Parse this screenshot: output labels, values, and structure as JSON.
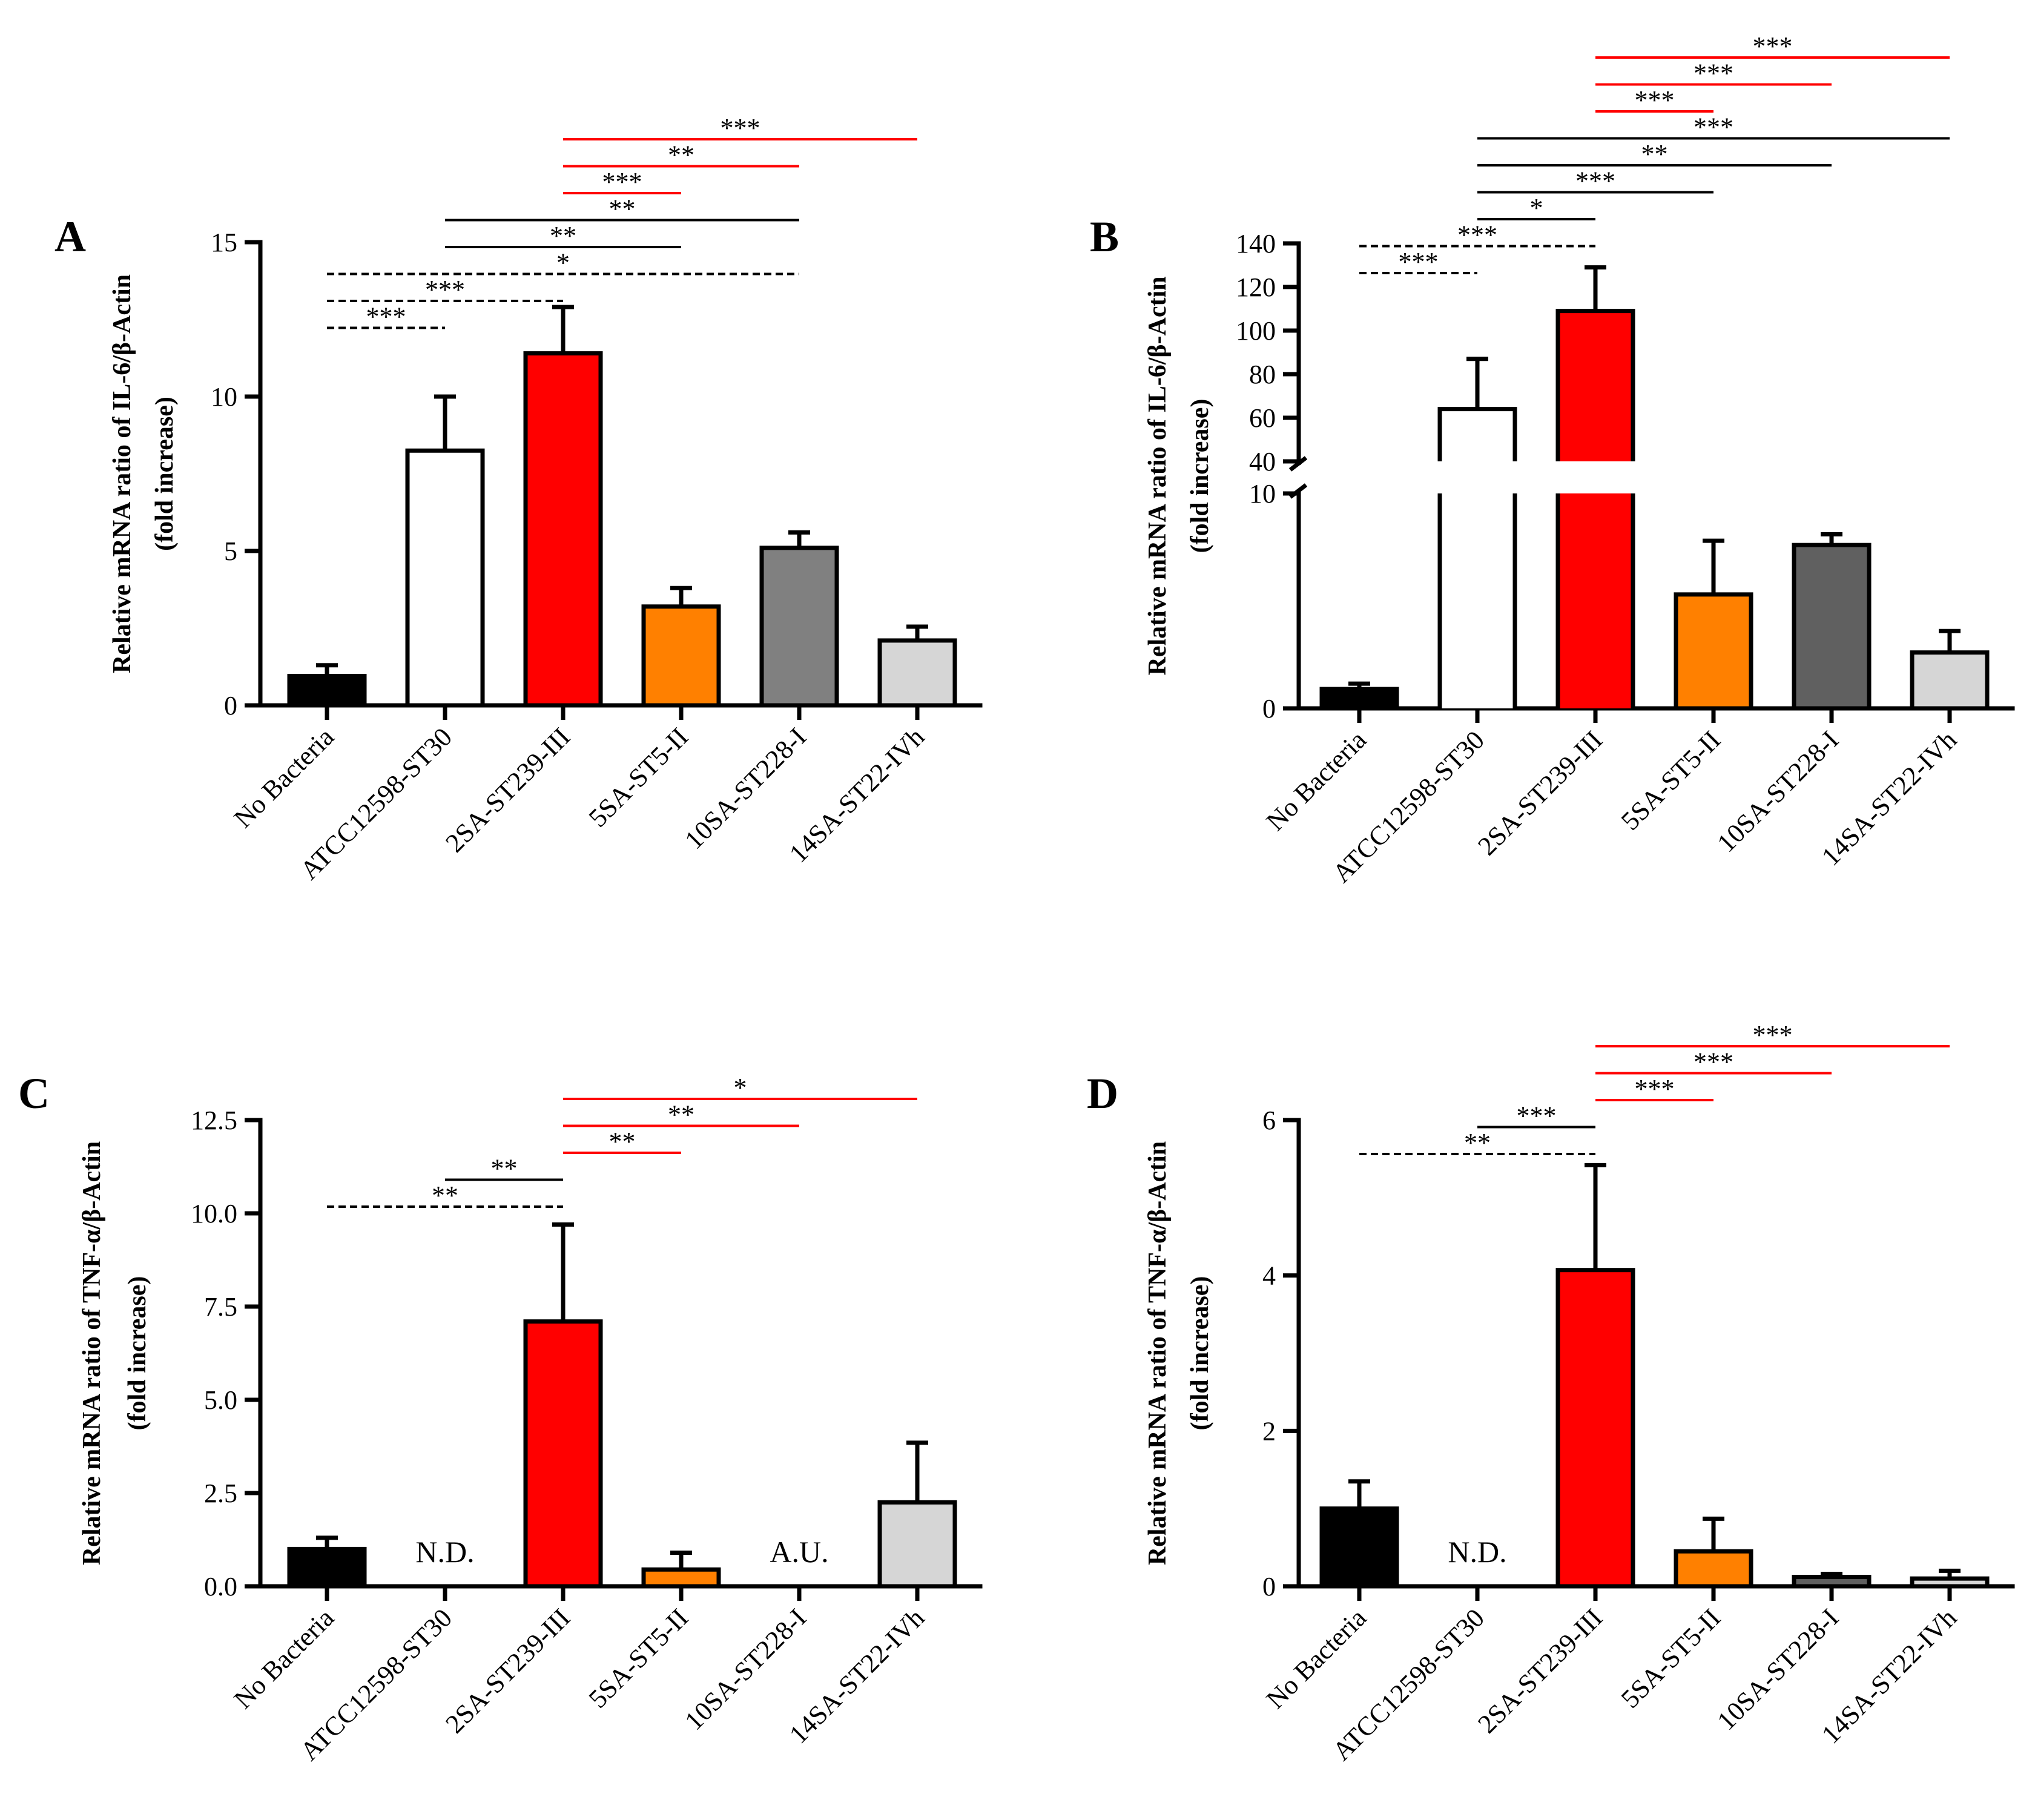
{
  "chart_data": [
    {
      "panel": "A",
      "type": "bar",
      "ylabel_line1": "Relative mRNA ratio of IL-6/β-Actin",
      "ylabel_line2": "(fold increase)",
      "ylim": [
        0,
        15
      ],
      "yticks": [
        "0",
        "5",
        "10",
        "15"
      ],
      "categories": [
        "No Bacteria",
        "ATCC12598-ST30",
        "2SA-ST239-III",
        "5SA-ST5-II",
        "10SA-ST228-I",
        "14SA-ST22-IVh"
      ],
      "values": [
        0.95,
        8.25,
        11.4,
        3.2,
        5.1,
        2.1
      ],
      "errors": [
        0.35,
        1.75,
        1.5,
        0.6,
        0.5,
        0.45
      ],
      "colors": [
        "#000000",
        "#ffffff",
        "#ff0000",
        "#ff8000",
        "#808080",
        "#d6d6d6"
      ],
      "notes": [],
      "brackets": [
        {
          "from": 0,
          "to": 1,
          "label": "***",
          "style": "dashed",
          "color": "#000000"
        },
        {
          "from": 0,
          "to": 2,
          "label": "***",
          "style": "dashed",
          "color": "#000000"
        },
        {
          "from": 0,
          "to": 4,
          "label": "*",
          "style": "dashed",
          "color": "#000000"
        },
        {
          "from": 1,
          "to": 3,
          "label": "**",
          "style": "solid",
          "color": "#000000"
        },
        {
          "from": 1,
          "to": 4,
          "label": "**",
          "style": "solid",
          "color": "#000000"
        },
        {
          "from": 2,
          "to": 3,
          "label": "***",
          "style": "solid",
          "color": "#ff0000"
        },
        {
          "from": 2,
          "to": 4,
          "label": "**",
          "style": "solid",
          "color": "#ff0000"
        },
        {
          "from": 2,
          "to": 5,
          "label": "***",
          "style": "solid",
          "color": "#ff0000"
        }
      ]
    },
    {
      "panel": "B",
      "type": "bar",
      "ylabel_line1": "Relative mRNA ratio of IL-6/β-Actin",
      "ylabel_line2": "(fold increase)",
      "axis_break": {
        "lower_range": [
          0,
          10
        ],
        "upper_range": [
          40,
          140
        ]
      },
      "yticks_lower": [
        "0",
        "10"
      ],
      "yticks_upper": [
        "40",
        "60",
        "80",
        "100",
        "120",
        "140"
      ],
      "categories": [
        "No Bacteria",
        "ATCC12598-ST30",
        "2SA-ST239-III",
        "5SA-ST5-II",
        "10SA-ST228-I",
        "14SA-ST22-IVh"
      ],
      "values": [
        0.9,
        64,
        109,
        5.3,
        7.6,
        2.6
      ],
      "errors": [
        0.25,
        23,
        20,
        2.5,
        0.5,
        1.0
      ],
      "colors": [
        "#000000",
        "#ffffff",
        "#ff0000",
        "#ff8000",
        "#606060",
        "#d6d6d6"
      ],
      "notes": [],
      "brackets": [
        {
          "from": 0,
          "to": 1,
          "label": "***",
          "style": "dashed",
          "color": "#000000"
        },
        {
          "from": 0,
          "to": 2,
          "label": "***",
          "style": "dashed",
          "color": "#000000"
        },
        {
          "from": 1,
          "to": 2,
          "label": "*",
          "style": "solid",
          "color": "#000000"
        },
        {
          "from": 1,
          "to": 3,
          "label": "***",
          "style": "solid",
          "color": "#000000"
        },
        {
          "from": 1,
          "to": 4,
          "label": "**",
          "style": "solid",
          "color": "#000000"
        },
        {
          "from": 1,
          "to": 5,
          "label": "***",
          "style": "solid",
          "color": "#000000"
        },
        {
          "from": 2,
          "to": 3,
          "label": "***",
          "style": "solid",
          "color": "#ff0000"
        },
        {
          "from": 2,
          "to": 4,
          "label": "***",
          "style": "solid",
          "color": "#ff0000"
        },
        {
          "from": 2,
          "to": 5,
          "label": "***",
          "style": "solid",
          "color": "#ff0000"
        }
      ]
    },
    {
      "panel": "C",
      "type": "bar",
      "ylabel_line1": "Relative mRNA ratio of TNF-α/β-Actin",
      "ylabel_line2": "(fold increase)",
      "ylim": [
        0,
        12.5
      ],
      "yticks": [
        "0.0",
        "2.5",
        "5.0",
        "7.5",
        "10.0",
        "12.5"
      ],
      "categories": [
        "No Bacteria",
        "ATCC12598-ST30",
        "2SA-ST239-III",
        "5SA-ST5-II",
        "10SA-ST228-I",
        "14SA-ST22-IVh"
      ],
      "values": [
        1.0,
        null,
        7.1,
        0.45,
        null,
        2.25
      ],
      "errors": [
        0.3,
        null,
        2.6,
        0.45,
        null,
        1.6
      ],
      "colors": [
        "#000000",
        "#ffffff",
        "#ff0000",
        "#ff8000",
        "#808080",
        "#d6d6d6"
      ],
      "notes": [
        {
          "index": 1,
          "text": "N.D."
        },
        {
          "index": 4,
          "text": "A.U."
        }
      ],
      "brackets": [
        {
          "from": 0,
          "to": 2,
          "label": "**",
          "style": "dashed",
          "color": "#000000"
        },
        {
          "from": 1,
          "to": 2,
          "label": "**",
          "style": "solid",
          "color": "#000000"
        },
        {
          "from": 2,
          "to": 3,
          "label": "**",
          "style": "solid",
          "color": "#ff0000"
        },
        {
          "from": 2,
          "to": 4,
          "label": "**",
          "style": "solid",
          "color": "#ff0000"
        },
        {
          "from": 2,
          "to": 5,
          "label": "*",
          "style": "solid",
          "color": "#ff0000"
        }
      ]
    },
    {
      "panel": "D",
      "type": "bar",
      "ylabel_line1": "Relative mRNA ratio of TNF-α/β-Actin",
      "ylabel_line2": "(fold increase)",
      "ylim": [
        0,
        6
      ],
      "yticks": [
        "0",
        "2",
        "4",
        "6"
      ],
      "categories": [
        "No Bacteria",
        "ATCC12598-ST30",
        "2SA-ST239-III",
        "5SA-ST5-II",
        "10SA-ST228-I",
        "14SA-ST22-IVh"
      ],
      "values": [
        1.0,
        null,
        4.07,
        0.45,
        0.12,
        0.1
      ],
      "errors": [
        0.35,
        null,
        1.35,
        0.42,
        0.04,
        0.1
      ],
      "colors": [
        "#000000",
        "#ffffff",
        "#ff0000",
        "#ff8000",
        "#606060",
        "#d6d6d6"
      ],
      "notes": [
        {
          "index": 1,
          "text": "N.D."
        }
      ],
      "brackets": [
        {
          "from": 0,
          "to": 2,
          "label": "**",
          "style": "dashed",
          "color": "#000000"
        },
        {
          "from": 1,
          "to": 2,
          "label": "***",
          "style": "solid",
          "color": "#000000"
        },
        {
          "from": 2,
          "to": 3,
          "label": "***",
          "style": "solid",
          "color": "#ff0000"
        },
        {
          "from": 2,
          "to": 4,
          "label": "***",
          "style": "solid",
          "color": "#ff0000"
        },
        {
          "from": 2,
          "to": 5,
          "label": "***",
          "style": "solid",
          "color": "#ff0000"
        }
      ]
    }
  ]
}
